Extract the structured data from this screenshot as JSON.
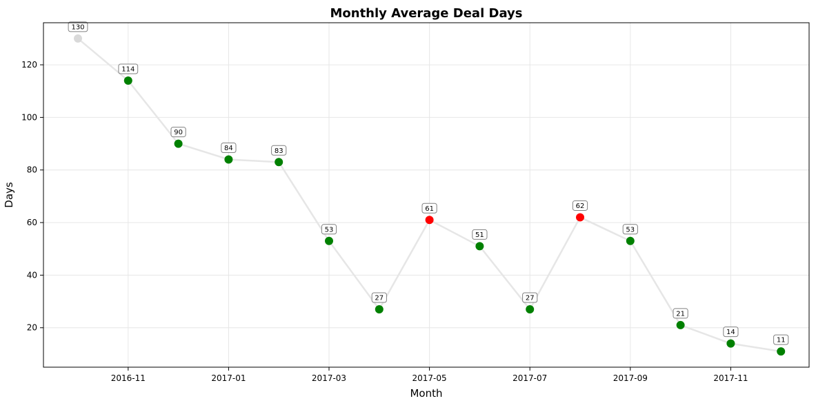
{
  "chart_data": {
    "type": "line",
    "title": "Monthly Average Deal Days",
    "xlabel": "Month",
    "ylabel": "Days",
    "x_ticks": [
      "2016-11",
      "2017-01",
      "2017-03",
      "2017-05",
      "2017-07",
      "2017-09",
      "2017-11"
    ],
    "y_ticks": [
      20,
      40,
      60,
      80,
      100,
      120
    ],
    "ylim": [
      5,
      136
    ],
    "grid": true,
    "series": [
      {
        "x": [
          "2016-10",
          "2016-11",
          "2016-12",
          "2017-01",
          "2017-02",
          "2017-03",
          "2017-04",
          "2017-05",
          "2017-06",
          "2017-07",
          "2017-08",
          "2017-09",
          "2017-10",
          "2017-11",
          "2017-12"
        ],
        "values": [
          130,
          114,
          90,
          84,
          83,
          53,
          27,
          61,
          51,
          27,
          62,
          53,
          21,
          14,
          11
        ],
        "point_colors": [
          "#d9d9d9",
          "#008000",
          "#008000",
          "#008000",
          "#008000",
          "#008000",
          "#008000",
          "#ff0000",
          "#008000",
          "#008000",
          "#ff0000",
          "#008000",
          "#008000",
          "#008000",
          "#008000"
        ]
      }
    ],
    "line_color": "#e6e6e6"
  }
}
